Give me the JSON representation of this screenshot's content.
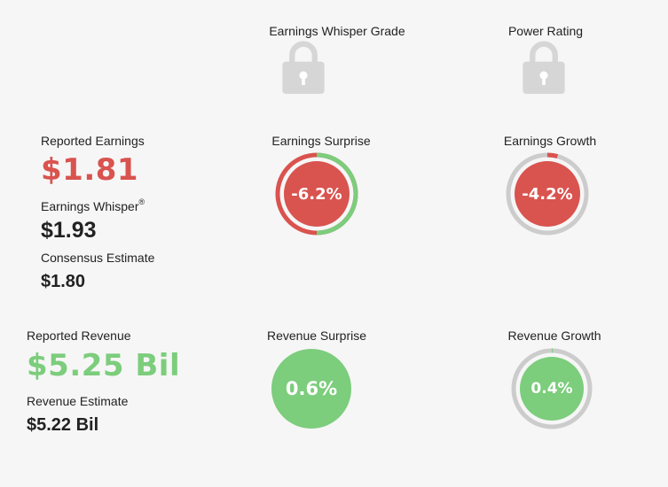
{
  "grades": {
    "whisper_grade_label": "Earnings Whisper Grade",
    "power_rating_label": "Power Rating",
    "lock_icon": "lock-icon"
  },
  "earnings": {
    "reported_label": "Reported Earnings",
    "reported_value": "$1.81",
    "whisper_label": "Earnings Whisper",
    "whisper_mark": "®",
    "whisper_value": "$1.93",
    "consensus_label": "Consensus Estimate",
    "consensus_value": "$1.80",
    "surprise_label": "Earnings Surprise",
    "surprise_value": "-6.2%",
    "surprise_pct": -6.2,
    "growth_label": "Earnings Growth",
    "growth_value": "-4.2%",
    "growth_pct": -4.2
  },
  "revenue": {
    "reported_label": "Reported Revenue",
    "reported_value": "$5.25 Bil",
    "estimate_label": "Revenue Estimate",
    "estimate_value": "$5.22 Bil",
    "surprise_label": "Revenue Surprise",
    "surprise_value": "0.6%",
    "surprise_pct": 0.6,
    "growth_label": "Revenue Growth",
    "growth_value": "0.4%",
    "growth_pct": 0.4
  },
  "colors": {
    "negative": "#d9534f",
    "positive": "#7ccd7c",
    "ring_track": "#cccccc",
    "lock": "#d6d6d6"
  }
}
